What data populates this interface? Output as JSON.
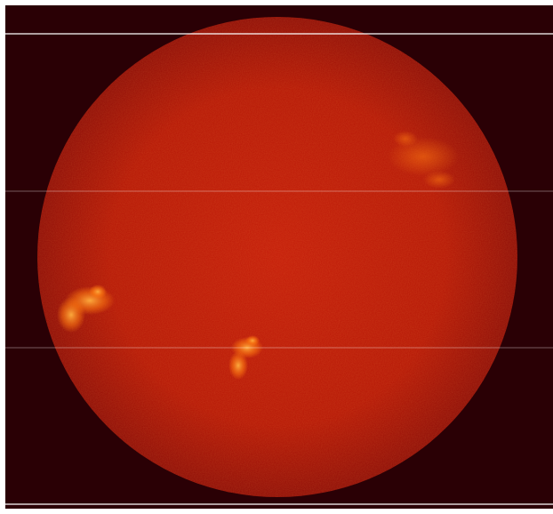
{
  "image": {
    "subject": "sun-h-alpha-disk",
    "colors": {
      "background": "#2a0005",
      "disk_center": "#c41a08",
      "disk_mid": "#b51505",
      "disk_limb": "#8e0b06",
      "plage": "#ff7a10",
      "plage_bright": "#ffb040",
      "grid_line": "#ffffff",
      "frame": "#ffffff"
    },
    "features": [
      {
        "name": "plage-west-upper",
        "brightness": "dim"
      },
      {
        "name": "plage-east-limb",
        "brightness": "bright"
      },
      {
        "name": "plage-central-south",
        "brightness": "bright"
      }
    ]
  }
}
